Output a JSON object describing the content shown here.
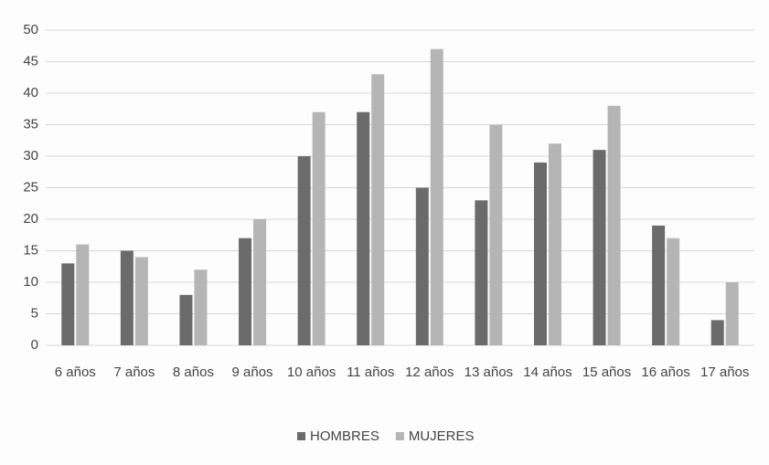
{
  "chart_data": {
    "type": "bar",
    "categories": [
      "6 años",
      "7 años",
      "8 años",
      "9 años",
      "10 años",
      "11 años",
      "12 años",
      "13 años",
      "14 años",
      "15 años",
      "16 años",
      "17 años"
    ],
    "series": [
      {
        "name": "HOMBRES",
        "color": "#6b6b6b",
        "values": [
          13,
          15,
          8,
          17,
          30,
          37,
          25,
          23,
          29,
          31,
          19,
          4
        ]
      },
      {
        "name": "MUJERES",
        "color": "#b5b5b5",
        "values": [
          16,
          14,
          12,
          20,
          37,
          43,
          47,
          35,
          32,
          38,
          17,
          10
        ]
      }
    ],
    "ylim": [
      0,
      50
    ],
    "yticks": [
      0,
      5,
      10,
      15,
      20,
      25,
      30,
      35,
      40,
      45,
      50
    ],
    "grid": true,
    "legend": "bottom"
  }
}
